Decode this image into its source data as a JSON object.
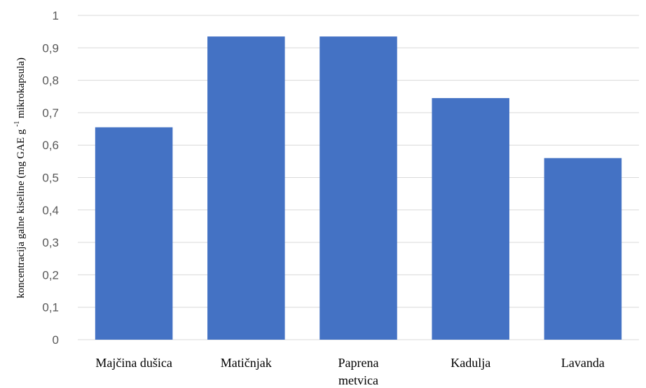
{
  "chart_data": {
    "type": "bar",
    "categories": [
      "Majčina dušica",
      "Matičnjak",
      "Paprena metvica",
      "Kadulja",
      "Lavanda"
    ],
    "category_lines": [
      [
        "Majčina dušica"
      ],
      [
        "Matičnjak"
      ],
      [
        "Paprena",
        "metvica"
      ],
      [
        "Kadulja"
      ],
      [
        "Lavanda"
      ]
    ],
    "values": [
      0.655,
      0.935,
      0.935,
      0.745,
      0.56
    ],
    "ylabel_main": "koncentracija galne kiseline (mg GAE g",
    "ylabel_sup": "-1",
    "ylabel_end": "mikrokapsula)",
    "ylim": [
      0,
      1
    ],
    "yticks": [
      0,
      0.1,
      0.2,
      0.3,
      0.4,
      0.5,
      0.6,
      0.7,
      0.8,
      0.9,
      1
    ],
    "ytick_labels": [
      "0",
      "0,1",
      "0,2",
      "0,3",
      "0,4",
      "0,5",
      "0,6",
      "0,7",
      "0,8",
      "0,9",
      "1"
    ],
    "grid": true,
    "bar_color": "#4472C4",
    "grid_color": "#D9D9D9"
  }
}
